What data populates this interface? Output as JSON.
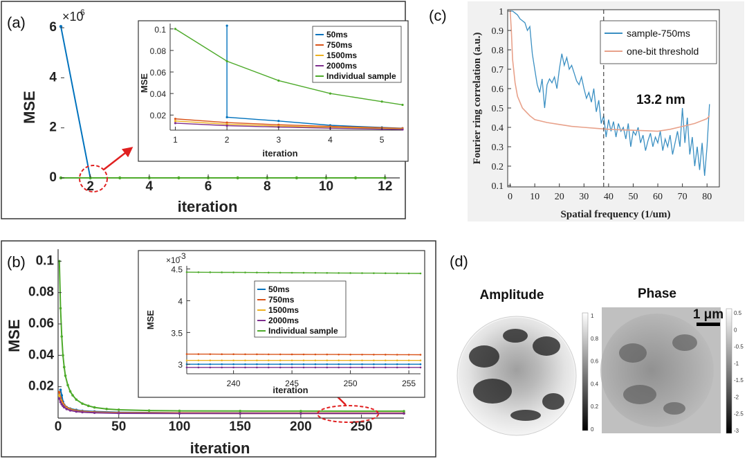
{
  "colors": {
    "50ms": "#0072BD",
    "750ms": "#D95319",
    "1500ms": "#EDB120",
    "2000ms": "#7E2F8E",
    "Individual sample": "#4DAA2A",
    "sample-750ms": "#3A8FC2",
    "one-bit threshold": "#E8A18A",
    "annotation": "#E02020"
  },
  "panels": {
    "a": {
      "label": "(a)",
      "exponent_base": "×10",
      "exponent_power": "6",
      "ylabel": "MSE",
      "xlabel": "iteration",
      "xticks": [
        "2",
        "4",
        "6",
        "8",
        "10",
        "12"
      ],
      "yticks": [
        "0",
        "2",
        "4",
        "6"
      ],
      "inset": {
        "ylabel": "MSE",
        "xlabel": "iteration",
        "xticks": [
          "1",
          "2",
          "3",
          "4",
          "5"
        ],
        "yticks": [
          "0.02",
          "0.04",
          "0.06",
          "0.08",
          "0.1"
        ],
        "legend": [
          "50ms",
          "750ms",
          "1500ms",
          "2000ms",
          "Individual sample"
        ]
      }
    },
    "b": {
      "label": "(b)",
      "ylabel": "MSE",
      "xlabel": "iteration",
      "xticks": [
        "0",
        "50",
        "100",
        "150",
        "200",
        "250"
      ],
      "yticks": [
        "0.02",
        "0.04",
        "0.06",
        "0.08",
        "0.1"
      ],
      "inset": {
        "exponent_base": "×10",
        "exponent_power": "-3",
        "ylabel": "MSE",
        "xlabel": "iteration",
        "xticks": [
          "240",
          "245",
          "250",
          "255"
        ],
        "yticks": [
          "3",
          "3.5",
          "4",
          "4.5"
        ],
        "legend": [
          "50ms",
          "750ms",
          "1500ms",
          "2000ms",
          "Individual sample"
        ]
      }
    },
    "c": {
      "label": "(c)",
      "ylabel": "Fourier ring correlation (a.u.)",
      "xlabel": "Spatial frequency (1/um)",
      "xticks": [
        "0",
        "10",
        "20",
        "30",
        "40",
        "50",
        "60",
        "70",
        "80"
      ],
      "yticks": [
        "0.1",
        "0.2",
        "0.3",
        "0.4",
        "0.5",
        "0.6",
        "0.7",
        "0.8",
        "0.9",
        "1"
      ],
      "legend": [
        "sample-750ms",
        "one-bit threshold"
      ],
      "annotation": "13.2 nm"
    },
    "d": {
      "label": "(d)",
      "amplitude_title": "Amplitude",
      "phase_title": "Phase",
      "scalebar": "1 μm",
      "amp_colorbar_ticks": [
        "1",
        "0.8",
        "0.6",
        "0.4",
        "0.2",
        "0"
      ],
      "phase_colorbar_ticks": [
        "0.5",
        "0",
        "-0.5",
        "-1",
        "-1.5",
        "-2",
        "-2.5",
        "-3"
      ]
    }
  },
  "chart_data": [
    {
      "type": "line",
      "title": "",
      "xlabel": "iteration",
      "ylabel": "MSE",
      "y_scale_factor": "1e6",
      "xlim": [
        1,
        12.5
      ],
      "ylim": [
        0,
        6.5
      ],
      "series": [
        {
          "name": "50ms",
          "x": [
            1,
            2
          ],
          "y": [
            6.05,
            0.0
          ]
        },
        {
          "name": "Individual sample",
          "x": [
            1,
            2,
            3,
            4,
            5,
            6,
            7,
            8,
            9,
            10,
            11,
            12
          ],
          "y": [
            0,
            0,
            0,
            0,
            0,
            0,
            0,
            0,
            0,
            0,
            0,
            0
          ]
        }
      ],
      "inset": {
        "type": "line",
        "xlabel": "iteration",
        "ylabel": "MSE",
        "xlim": [
          0.9,
          5.4
        ],
        "ylim": [
          0.006,
          0.105
        ],
        "series": [
          {
            "name": "50ms",
            "x": [
              2,
              2,
              3,
              4,
              5,
              5.4
            ],
            "y": [
              0.103,
              0.018,
              0.0145,
              0.0105,
              0.0085,
              0.0078
            ]
          },
          {
            "name": "750ms",
            "x": [
              1,
              2,
              3,
              4,
              5,
              5.4
            ],
            "y": [
              0.0165,
              0.013,
              0.011,
              0.0095,
              0.0082,
              0.0077
            ]
          },
          {
            "name": "1500ms",
            "x": [
              1,
              2,
              3,
              4,
              5,
              5.4
            ],
            "y": [
              0.0145,
              0.0115,
              0.0098,
              0.0085,
              0.0075,
              0.0071
            ]
          },
          {
            "name": "2000ms",
            "x": [
              1,
              2,
              3,
              4,
              5,
              5.4
            ],
            "y": [
              0.0125,
              0.0102,
              0.0088,
              0.0078,
              0.0069,
              0.0066
            ]
          },
          {
            "name": "Individual sample",
            "x": [
              1,
              2,
              3,
              4,
              5,
              5.4
            ],
            "y": [
              0.1,
              0.07,
              0.052,
              0.04,
              0.0325,
              0.0295
            ]
          }
        ]
      }
    },
    {
      "type": "line",
      "title": "",
      "xlabel": "iteration",
      "ylabel": "MSE",
      "xlim": [
        0,
        285
      ],
      "ylim": [
        0,
        0.105
      ],
      "series": [
        {
          "name": "50ms",
          "x": [
            2,
            3,
            4,
            5,
            7,
            10,
            15,
            20,
            30,
            50,
            100,
            150,
            200,
            285
          ],
          "y": [
            0.018,
            0.0145,
            0.0105,
            0.0085,
            0.007,
            0.006,
            0.0052,
            0.0046,
            0.0042,
            0.0037,
            0.0033,
            0.0032,
            0.0031,
            0.003
          ]
        },
        {
          "name": "750ms",
          "x": [
            1,
            2,
            3,
            4,
            5,
            7,
            10,
            15,
            20,
            30,
            50,
            100,
            150,
            200,
            285
          ],
          "y": [
            0.0165,
            0.013,
            0.011,
            0.0095,
            0.0082,
            0.0068,
            0.0057,
            0.0048,
            0.0043,
            0.0039,
            0.0035,
            0.0033,
            0.0032,
            0.0032,
            0.0032
          ]
        },
        {
          "name": "1500ms",
          "x": [
            1,
            2,
            3,
            4,
            5,
            7,
            10,
            15,
            20,
            30,
            50,
            100,
            150,
            200,
            285
          ],
          "y": [
            0.0145,
            0.0115,
            0.0098,
            0.0085,
            0.0075,
            0.0063,
            0.0053,
            0.0045,
            0.004,
            0.0036,
            0.0033,
            0.0031,
            0.003,
            0.003,
            0.003
          ]
        },
        {
          "name": "2000ms",
          "x": [
            1,
            2,
            3,
            4,
            5,
            7,
            10,
            15,
            20,
            30,
            50,
            100,
            150,
            200,
            285
          ],
          "y": [
            0.0125,
            0.0102,
            0.0088,
            0.0078,
            0.0069,
            0.0058,
            0.0049,
            0.0042,
            0.0038,
            0.0034,
            0.0031,
            0.003,
            0.003,
            0.003,
            0.003
          ]
        },
        {
          "name": "Individual sample",
          "x": [
            1,
            2,
            3,
            4,
            5,
            6,
            8,
            10,
            12,
            15,
            20,
            25,
            30,
            40,
            50,
            75,
            100,
            150,
            200,
            285
          ],
          "y": [
            0.1,
            0.07,
            0.052,
            0.04,
            0.0325,
            0.027,
            0.021,
            0.017,
            0.0145,
            0.0118,
            0.0092,
            0.0078,
            0.0068,
            0.0058,
            0.0053,
            0.0048,
            0.0046,
            0.0045,
            0.00445,
            0.0044
          ]
        }
      ],
      "inset": {
        "type": "line",
        "xlabel": "iteration",
        "ylabel": "MSE",
        "y_scale_factor": "1e-3",
        "xlim": [
          236,
          256
        ],
        "ylim": [
          2.85,
          4.55
        ],
        "series": [
          {
            "name": "50ms",
            "x": [
              236,
              256
            ],
            "y": [
              3.0,
              3.0
            ]
          },
          {
            "name": "750ms",
            "x": [
              236,
              256
            ],
            "y": [
              3.16,
              3.15
            ]
          },
          {
            "name": "1500ms",
            "x": [
              236,
              256
            ],
            "y": [
              3.06,
              3.06
            ]
          },
          {
            "name": "2000ms",
            "x": [
              236,
              256
            ],
            "y": [
              2.95,
              2.95
            ]
          },
          {
            "name": "Individual sample",
            "x": [
              236,
              256
            ],
            "y": [
              4.45,
              4.43
            ]
          }
        ]
      }
    },
    {
      "type": "line",
      "title": "",
      "xlabel": "Spatial frequency (1/um)",
      "ylabel": "Fourier ring correlation (a.u.)",
      "xlim": [
        -1,
        85
      ],
      "ylim": [
        0.1,
        1.0
      ],
      "vline_x": 38,
      "annotation": "13.2 nm",
      "series": [
        {
          "name": "sample-750ms",
          "x": [
            0,
            1,
            2,
            3,
            4,
            5,
            6,
            7,
            8,
            9,
            10,
            11,
            12,
            13,
            14,
            15,
            16,
            17,
            18,
            19,
            20,
            21,
            22,
            23,
            24,
            25,
            26,
            27,
            28,
            29,
            30,
            31,
            32,
            33,
            34,
            35,
            36,
            37,
            38,
            39,
            40,
            41,
            42,
            43,
            44,
            45,
            46,
            47,
            48,
            49,
            50,
            51,
            52,
            53,
            54,
            55,
            56,
            57,
            58,
            59,
            60,
            61,
            62,
            63,
            64,
            65,
            66,
            67,
            68,
            69,
            70,
            71,
            72,
            73,
            74,
            75,
            76,
            77,
            78,
            79,
            80,
            81
          ],
          "y": [
            1.0,
            1.0,
            0.99,
            0.98,
            0.96,
            0.95,
            0.94,
            0.9,
            0.92,
            0.78,
            0.7,
            0.62,
            0.58,
            0.65,
            0.5,
            0.62,
            0.65,
            0.63,
            0.66,
            0.6,
            0.7,
            0.78,
            0.72,
            0.76,
            0.7,
            0.72,
            0.68,
            0.64,
            0.62,
            0.66,
            0.6,
            0.55,
            0.58,
            0.53,
            0.6,
            0.48,
            0.54,
            0.42,
            0.46,
            0.35,
            0.44,
            0.38,
            0.43,
            0.35,
            0.42,
            0.38,
            0.4,
            0.34,
            0.42,
            0.3,
            0.38,
            0.36,
            0.4,
            0.32,
            0.36,
            0.28,
            0.33,
            0.37,
            0.3,
            0.35,
            0.32,
            0.38,
            0.28,
            0.34,
            0.3,
            0.36,
            0.26,
            0.32,
            0.38,
            0.3,
            0.5,
            0.32,
            0.45,
            0.26,
            0.35,
            0.2,
            0.3,
            0.18,
            0.32,
            0.15,
            0.3,
            0.52
          ]
        },
        {
          "name": "one-bit threshold",
          "x": [
            0,
            0.5,
            1,
            2,
            3,
            5,
            8,
            10,
            15,
            20,
            25,
            30,
            35,
            40,
            45,
            50,
            55,
            60,
            65,
            70,
            75,
            80,
            81
          ],
          "y": [
            1.0,
            0.9,
            0.75,
            0.63,
            0.56,
            0.5,
            0.46,
            0.44,
            0.425,
            0.415,
            0.405,
            0.4,
            0.395,
            0.39,
            0.387,
            0.385,
            0.383,
            0.38,
            0.39,
            0.405,
            0.42,
            0.445,
            0.46
          ]
        }
      ]
    }
  ]
}
